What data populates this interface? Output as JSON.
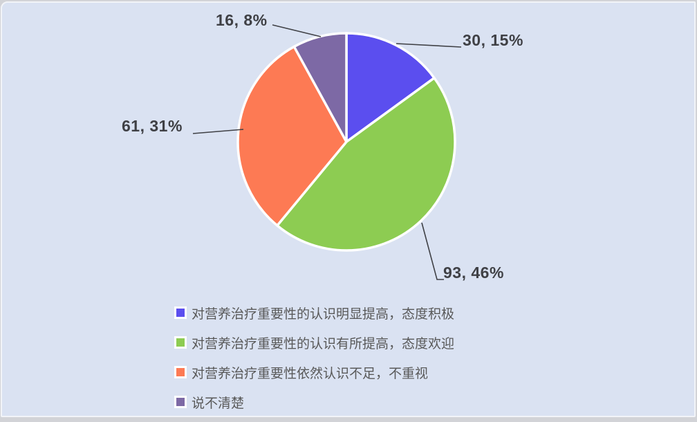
{
  "chart_data": {
    "type": "pie",
    "title": "",
    "total": 200,
    "direction": "clockwise",
    "start_angle_deg": 0,
    "legend_position": "bottom-left",
    "slices": [
      {
        "name": "对营养治疗重要性的认识明显提高，态度积极",
        "value": 30,
        "percent": 15,
        "label_text": "30, 15%",
        "color": "#5b4eef"
      },
      {
        "name": "对营养治疗重要性的认识有所提高，态度欢迎",
        "value": 93,
        "percent": 46,
        "label_text": "93, 46%",
        "color": "#8dcc52"
      },
      {
        "name": "对营养治疗重要性依然认识不足，不重视",
        "value": 61,
        "percent": 31,
        "label_text": "61, 31%",
        "color": "#fd7a54"
      },
      {
        "name": "说不清楚",
        "value": 16,
        "percent": 8,
        "label_text": "16, 8%",
        "color": "#7d69a5"
      }
    ],
    "style": {
      "panel_background": "#dae2f2",
      "slice_stroke": "#ffffff",
      "data_label_color": "#3f4045",
      "legend_text_color": "#595959",
      "leader_line_color": "#3f4045"
    }
  }
}
